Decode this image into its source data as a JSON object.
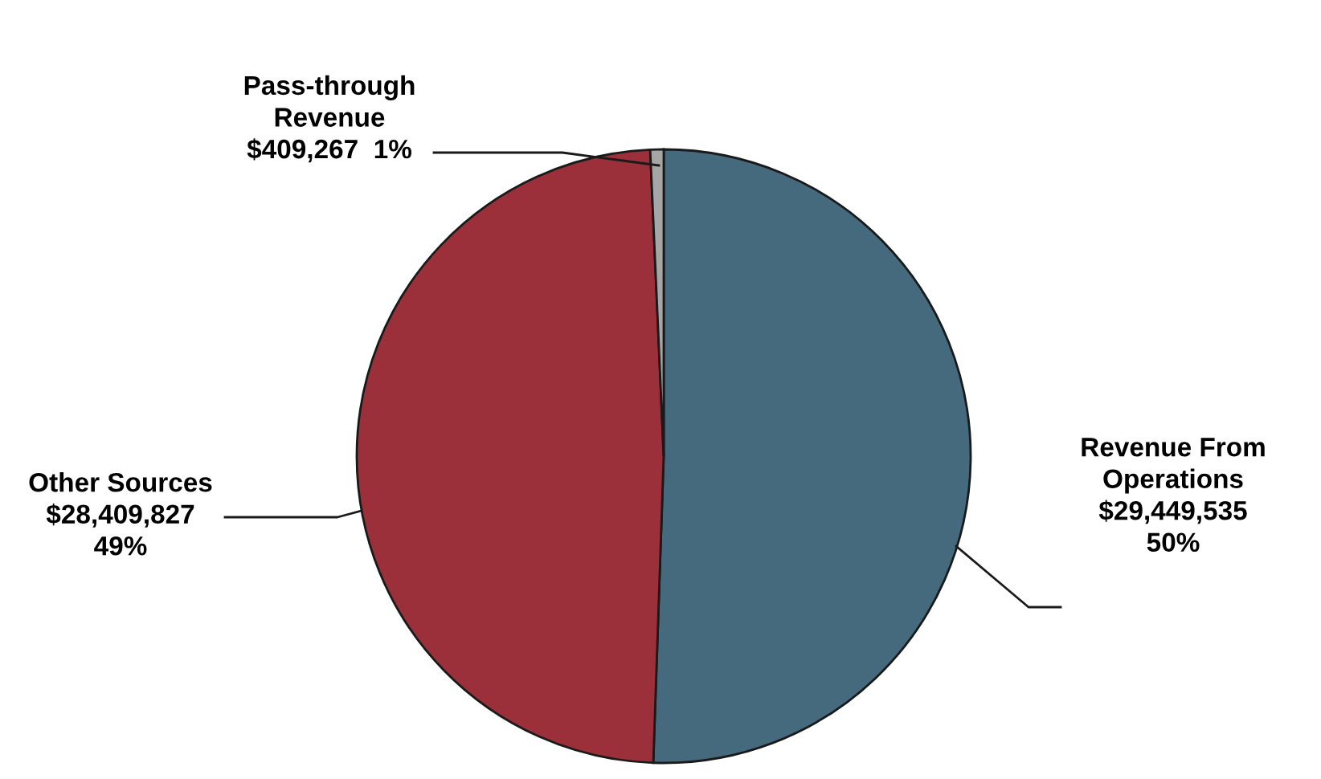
{
  "chart_data": {
    "type": "pie",
    "categories": [
      "Revenue From Operations",
      "Other Sources",
      "Pass-through Revenue"
    ],
    "values": [
      29449535,
      28409827,
      409267
    ],
    "colors": [
      "#466a7d",
      "#9b303b",
      "#a6a6a6"
    ],
    "value_labels": [
      "$29,449,535\n50%",
      "$28,409,827\n49%",
      "$409,267  1%"
    ],
    "legend": false
  }
}
